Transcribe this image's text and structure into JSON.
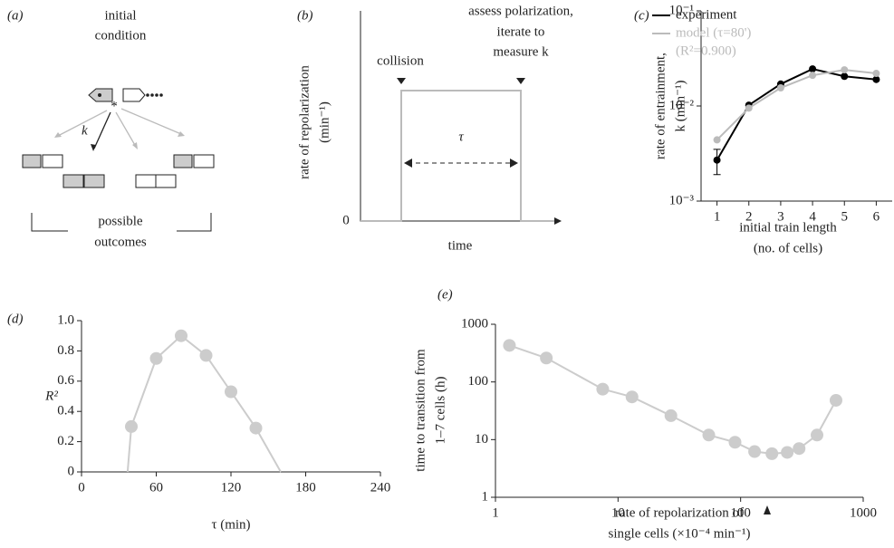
{
  "panel_a": {
    "label": "(a)",
    "title_lines": [
      "initial",
      "condition"
    ],
    "rate_label": "k",
    "outcome_lines": [
      "possible",
      "outcomes"
    ]
  },
  "panel_b": {
    "label": "(b)",
    "event_1": "collision",
    "event_2_lines": [
      "assess polarization,",
      "iterate to",
      "measure k"
    ],
    "ylabel_lines": [
      "rate of repolarization",
      "(min⁻¹)"
    ],
    "y_zero": 0,
    "xlabel": "time",
    "duration": "τ"
  },
  "chart_data": [
    {
      "type": "line",
      "label": "(c)",
      "xlabel": [
        "initial train length",
        "(no. of cells)"
      ],
      "ylabel": [
        "rate of entrainment,",
        "k (min⁻¹)"
      ],
      "x": [
        1,
        2,
        3,
        4,
        5,
        6
      ],
      "xlim": [
        0.5,
        6.5
      ],
      "xticks": [
        1,
        2,
        3,
        4,
        5,
        6
      ],
      "ylim": [
        0.001,
        0.1
      ],
      "yticks": [
        {
          "value": 0.001,
          "label": "10⁻³"
        },
        {
          "value": 0.01,
          "label": "10⁻²"
        },
        {
          "value": 0.1,
          "label": "10⁻¹"
        }
      ],
      "log_y": true,
      "legend": "upper left",
      "legend_note": "(R²=0.900)",
      "series": [
        {
          "name": "experiment",
          "color": "#000000",
          "values": [
            0.0027,
            0.0102,
            0.017,
            0.0245,
            0.0205,
            0.019
          ],
          "errors": [
            0.0008,
            null,
            null,
            null,
            null,
            null
          ]
        },
        {
          "name": "model (τ=80')",
          "color": "#bbbbbb",
          "values": [
            0.0044,
            0.0095,
            0.0155,
            0.021,
            0.024,
            0.022
          ]
        }
      ]
    },
    {
      "type": "line",
      "label": "(d)",
      "xlabel": [
        "τ (min)"
      ],
      "ylabel_flat": "R²",
      "x": [
        37,
        40,
        60,
        80,
        100,
        120,
        140,
        160
      ],
      "xlim": [
        0,
        240
      ],
      "xticks": [
        0,
        60,
        120,
        180,
        240
      ],
      "ylim": [
        0,
        1
      ],
      "yticks": [
        0,
        0.2,
        0.4,
        0.6,
        0.8,
        {
          "value": 1,
          "label": "1.0"
        }
      ],
      "series": [
        {
          "color": "#cccccc",
          "values": [
            0,
            0.3,
            0.75,
            0.9,
            0.77,
            0.53,
            0.29,
            0
          ]
        }
      ]
    },
    {
      "type": "line",
      "label": "(e)",
      "xlabel": [
        "rate of repolarization of",
        "single cells (×10⁻⁴ min⁻¹)"
      ],
      "ylabel": [
        "time to transition from",
        "1–7 cells (h)"
      ],
      "x": [
        1.3,
        2.6,
        7.5,
        13,
        27,
        55,
        90,
        130,
        180,
        240,
        300,
        420,
        600
      ],
      "xlim": [
        1,
        1000
      ],
      "xticks": [
        1,
        10,
        100,
        1000
      ],
      "ylim": [
        1,
        1000
      ],
      "yticks": [
        1,
        10,
        100,
        1000
      ],
      "log_x": true,
      "log_y": true,
      "series": [
        {
          "color": "#cccccc",
          "values": [
            430,
            260,
            75,
            55,
            26,
            12,
            9,
            6.2,
            5.7,
            6,
            7,
            12,
            48
          ]
        }
      ]
    }
  ]
}
